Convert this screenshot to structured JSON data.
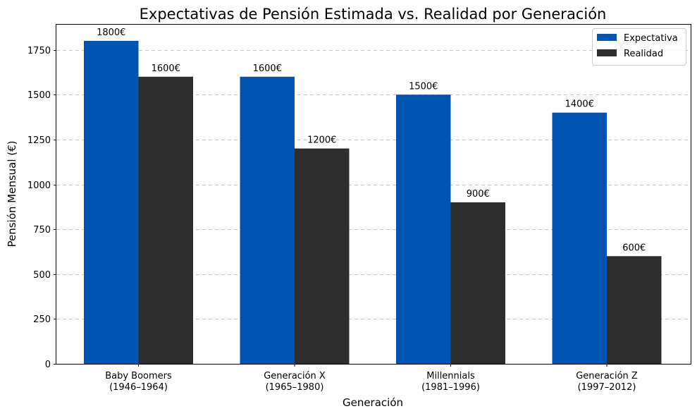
{
  "chart_data": {
    "type": "bar",
    "title": "Expectativas de Pensión Estimada vs. Realidad por Generación",
    "xlabel": "Generación",
    "ylabel": "Pensión Mensual (€)",
    "ylim": [
      0,
      1890
    ],
    "yticks": [
      0,
      250,
      500,
      750,
      1000,
      1250,
      1500,
      1750
    ],
    "grid": "horizontal dashed",
    "legend_position": "top-right",
    "categories": [
      [
        "Baby Boomers",
        "(1946–1964)"
      ],
      [
        "Generación X",
        "(1965–1980)"
      ],
      [
        "Millennials",
        "(1981–1996)"
      ],
      [
        "Generación Z",
        "(1997–2012)"
      ]
    ],
    "series": [
      {
        "name": "Expectativa",
        "color": "#0055b3",
        "values": [
          1800,
          1600,
          1500,
          1400
        ],
        "labels": [
          "1800€",
          "1600€",
          "1500€",
          "1400€"
        ]
      },
      {
        "name": "Realidad",
        "color": "#2d2d2d",
        "values": [
          1600,
          1200,
          900,
          600
        ],
        "labels": [
          "1600€",
          "1200€",
          "900€",
          "600€"
        ]
      }
    ]
  }
}
